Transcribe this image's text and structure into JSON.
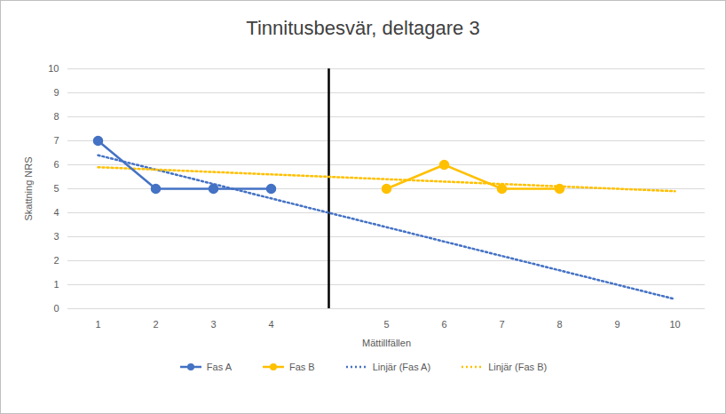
{
  "chart_data": {
    "type": "line",
    "title": "Tinnitusbesvär, deltagare 3",
    "x_label": "Mättillfällen",
    "y_label": "Skattning NRS",
    "categories": [
      "1",
      "2",
      "3",
      "4",
      null,
      "5",
      "6",
      "7",
      "8",
      "9",
      "10"
    ],
    "series": [
      {
        "name": "Fas A",
        "color": "#4472c4",
        "marker": "circle",
        "line_style": "solid",
        "values": [
          7,
          5,
          5,
          5,
          null,
          null,
          null,
          null,
          null,
          null,
          null
        ]
      },
      {
        "name": "Fas B",
        "color": "#ffc000",
        "marker": "circle",
        "line_style": "solid",
        "values": [
          null,
          null,
          null,
          null,
          null,
          5,
          6,
          5,
          5,
          null,
          null
        ]
      },
      {
        "name": "Linjär (Fas A)",
        "color": "#4472c4",
        "marker": "none",
        "line_style": "dotted",
        "values": [
          6.4,
          5.8,
          5.2,
          4.6,
          4.0,
          3.4,
          2.8,
          2.2,
          1.6,
          1.0,
          0.4
        ]
      },
      {
        "name": "Linjär (Fas B)",
        "color": "#ffc000",
        "marker": "none",
        "line_style": "dotted",
        "values": [
          5.9,
          5.8,
          5.7,
          5.6,
          5.5,
          5.4,
          5.3,
          5.2,
          5.1,
          5.0,
          4.9
        ]
      }
    ],
    "ylim": [
      0,
      10
    ],
    "yticks": [
      0,
      1,
      2,
      3,
      4,
      5,
      6,
      7,
      8,
      9,
      10
    ],
    "grid": true,
    "legend": "bottom"
  }
}
